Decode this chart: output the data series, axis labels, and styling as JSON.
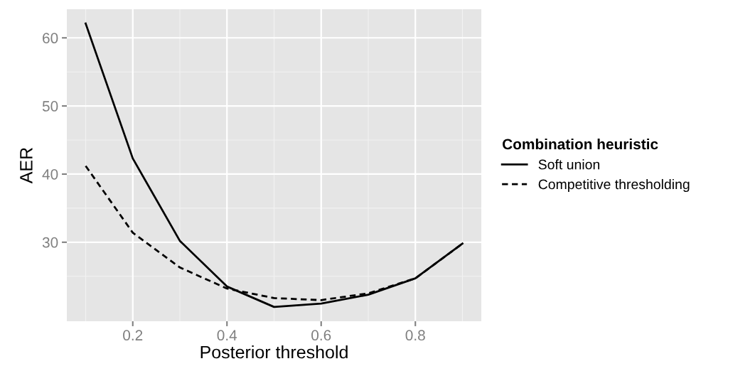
{
  "chart_data": {
    "type": "line",
    "xlabel": "Posterior threshold",
    "ylabel": "AER",
    "legend_title": "Combination heuristic",
    "legend": "right",
    "x": [
      0.1,
      0.2,
      0.3,
      0.4,
      0.5,
      0.6,
      0.7,
      0.8,
      0.9
    ],
    "series": [
      {
        "name": "Soft union",
        "color": "#000000",
        "line_style": "solid",
        "values": [
          62.1,
          42.3,
          30.2,
          23.5,
          20.5,
          21.0,
          22.3,
          24.7,
          29.8
        ]
      },
      {
        "name": "Competitive thresholding",
        "color": "#000000",
        "line_style": "dashed",
        "values": [
          41.2,
          31.4,
          26.3,
          23.2,
          21.8,
          21.5,
          22.5,
          24.7,
          29.8
        ]
      }
    ],
    "xlim": [
      0.06,
      0.94
    ],
    "xticks": [
      0.2,
      0.4,
      0.6,
      0.8
    ],
    "ylim": [
      18.4,
      64.2
    ],
    "yticks": [
      30,
      40,
      50,
      60
    ],
    "grid": true,
    "marker": "none"
  }
}
